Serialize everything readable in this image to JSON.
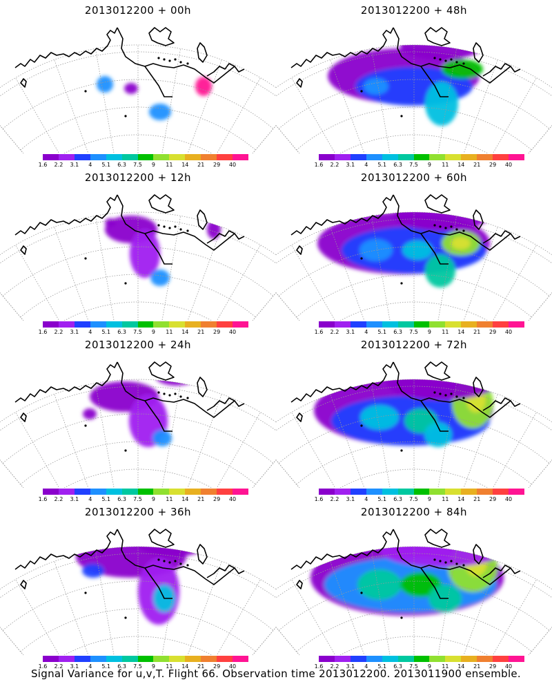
{
  "colorbar": {
    "colors": [
      "#8a00cc",
      "#a020f0",
      "#2040ff",
      "#1e90ff",
      "#00c0e0",
      "#00c8a0",
      "#00c000",
      "#90e030",
      "#d8e030",
      "#e8b020",
      "#f08030",
      "#ff4040",
      "#ff1493"
    ],
    "labels": [
      "1.6",
      "2.2",
      "3.1",
      "4",
      "5.1",
      "6.3",
      "7.5",
      "9",
      "11",
      "14",
      "21",
      "29",
      "40"
    ]
  },
  "panels": [
    {
      "title": "2013012200 + 00h",
      "level": 0
    },
    {
      "title": "2013012200 + 48h",
      "level": 4
    },
    {
      "title": "2013012200 + 12h",
      "level": 1
    },
    {
      "title": "2013012200 + 60h",
      "level": 5
    },
    {
      "title": "2013012200 + 24h",
      "level": 2
    },
    {
      "title": "2013012200 + 72h",
      "level": 6
    },
    {
      "title": "2013012200 + 36h",
      "level": 3
    },
    {
      "title": "2013012200 + 84h",
      "level": 7
    }
  ],
  "footer": "Signal Variance for u,v,T. Flight 66. Observation time 2013012200. 2013011900 ensemble."
}
